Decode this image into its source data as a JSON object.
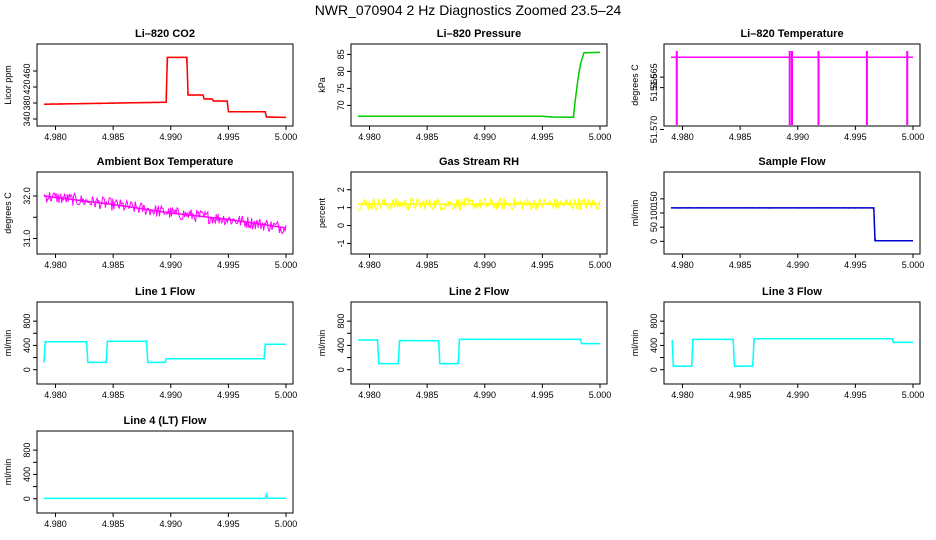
{
  "page": {
    "title": "NWR_070904  2 Hz Diagnostics Zoomed 23.5–24"
  },
  "chart_data": [
    {
      "type": "line",
      "title": "Li–820 CO2",
      "xlabel": "",
      "ylabel": "Licor ppm",
      "color": "#ff0000",
      "xlim": [
        4.979,
        5.0
      ],
      "ylim": [
        340,
        510
      ],
      "x_ticks": [
        4.98,
        4.985,
        4.99,
        4.995,
        5.0
      ],
      "x_tick_labels": [
        "4.980",
        "4.985",
        "4.990",
        "4.995",
        "5.000"
      ],
      "y_ticks": [
        340,
        380,
        420,
        460
      ],
      "y_tick_labels": [
        "340",
        "380",
        "420",
        "460"
      ],
      "series": [
        {
          "noise": 2,
          "points": [
            [
              4.979,
              377
            ],
            [
              4.9896,
              382
            ],
            [
              4.9897,
              494
            ],
            [
              4.9914,
              494
            ],
            [
              4.9915,
              400
            ],
            [
              4.9928,
              400
            ],
            [
              4.9929,
              390
            ],
            [
              4.9936,
              390
            ],
            [
              4.9937,
              385
            ],
            [
              4.9949,
              385
            ],
            [
              4.995,
              358
            ],
            [
              4.9982,
              358
            ],
            [
              4.9983,
              345
            ],
            [
              5.0,
              344
            ]
          ]
        }
      ]
    },
    {
      "type": "line",
      "title": "Li–820 Pressure",
      "xlabel": "",
      "ylabel": "kPa",
      "color": "#00cc00",
      "xlim": [
        4.979,
        5.0
      ],
      "ylim": [
        66,
        86
      ],
      "x_ticks": [
        4.98,
        4.985,
        4.99,
        4.995,
        5.0
      ],
      "x_tick_labels": [
        "4.980",
        "4.985",
        "4.990",
        "4.995",
        "5.000"
      ],
      "y_ticks": [
        70,
        75,
        80,
        85
      ],
      "y_tick_labels": [
        "70",
        "75",
        "80",
        "85"
      ],
      "series": [
        {
          "noise": 0.08,
          "points": [
            [
              4.979,
              66.8
            ],
            [
              4.995,
              66.8
            ],
            [
              4.9958,
              66.6
            ],
            [
              4.9977,
              66.5
            ],
            [
              4.9978,
              70
            ],
            [
              4.9981,
              78
            ],
            [
              4.9983,
              82
            ],
            [
              4.9986,
              85.5
            ],
            [
              5.0,
              85.6
            ]
          ]
        }
      ]
    },
    {
      "type": "line",
      "title": "Li–820 Temperature",
      "xlabel": "",
      "ylabel": "degrees C",
      "color": "#ff00ff",
      "xlim": [
        4.979,
        5.0
      ],
      "ylim": [
        51.569,
        51.5625
      ],
      "x_ticks": [
        4.98,
        4.985,
        4.99,
        4.995,
        5.0
      ],
      "x_tick_labels": [
        "4.980",
        "4.985",
        "4.990",
        "4.995",
        "5.000"
      ],
      "y_ticks": [
        51.57,
        51.566,
        51.565
      ],
      "y_tick_labels": [
        "51.570",
        "51.566",
        "51.565"
      ],
      "series": [
        {
          "noise": 0,
          "points": [
            [
              4.979,
              51.5631
            ],
            [
              5.0,
              51.5631
            ]
          ]
        }
      ],
      "spikes": [
        4.9795,
        4.9893,
        4.9895,
        4.9918,
        4.996,
        4.9995
      ]
    },
    {
      "type": "line",
      "title": "Ambient Box Temperature",
      "xlabel": "",
      "ylabel": "degrees C",
      "color": "#ff00ff",
      "xlim": [
        4.979,
        5.0
      ],
      "ylim": [
        30.8,
        32.4
      ],
      "x_ticks": [
        4.98,
        4.985,
        4.99,
        4.995,
        5.0
      ],
      "x_tick_labels": [
        "4.980",
        "4.985",
        "4.990",
        "4.995",
        "5.000"
      ],
      "y_ticks": [
        31.0,
        31.5,
        32.0
      ],
      "y_tick_labels": [
        "31.0",
        "",
        "32.0"
      ],
      "series": [
        {
          "noise": 0.3,
          "points": [
            [
              4.979,
              32.0
            ],
            [
              4.985,
              31.8
            ],
            [
              4.99,
              31.6
            ],
            [
              4.995,
              31.45
            ],
            [
              5.0,
              31.25
            ]
          ]
        }
      ]
    },
    {
      "type": "line",
      "title": "Gas Stream RH",
      "xlabel": "",
      "ylabel": "percent",
      "color": "#ffff00",
      "xlim": [
        4.979,
        5.0
      ],
      "ylim": [
        -1.2,
        2.6
      ],
      "x_ticks": [
        4.98,
        4.985,
        4.99,
        4.995,
        5.0
      ],
      "x_tick_labels": [
        "4.980",
        "4.985",
        "4.990",
        "4.995",
        "5.000"
      ],
      "y_ticks": [
        -1,
        0,
        1,
        2
      ],
      "y_tick_labels": [
        "-1",
        "0",
        "1",
        "2"
      ],
      "series": [
        {
          "noise": 0.7,
          "points": [
            [
              4.979,
              1.2
            ],
            [
              5.0,
              1.2
            ]
          ]
        }
      ]
    },
    {
      "type": "line",
      "title": "Sample Flow",
      "xlabel": "",
      "ylabel": "ml/min",
      "color": "#0000cc",
      "xlim": [
        4.979,
        5.0
      ],
      "ylim": [
        -20,
        220
      ],
      "x_ticks": [
        4.98,
        4.985,
        4.99,
        4.995,
        5.0
      ],
      "x_tick_labels": [
        "4.980",
        "4.985",
        "4.990",
        "4.995",
        "5.000"
      ],
      "y_ticks": [
        0,
        50,
        100,
        150
      ],
      "y_tick_labels": [
        "0",
        "50",
        "100",
        "150"
      ],
      "series": [
        {
          "noise": 1.5,
          "points": [
            [
              4.979,
              118
            ],
            [
              4.9966,
              118
            ],
            [
              4.9967,
              2
            ],
            [
              5.0,
              2
            ]
          ]
        }
      ]
    },
    {
      "type": "line",
      "title": "Line 1 Flow",
      "xlabel": "",
      "ylabel": "ml/min",
      "color": "#00ffff",
      "xlim": [
        4.979,
        5.0
      ],
      "ylim": [
        -120,
        1000
      ],
      "x_ticks": [
        4.98,
        4.985,
        4.99,
        4.995,
        5.0
      ],
      "x_tick_labels": [
        "4.980",
        "4.985",
        "4.990",
        "4.995",
        "5.000"
      ],
      "y_ticks": [
        0,
        200,
        400,
        600,
        800
      ],
      "y_tick_labels": [
        "0",
        "",
        "400",
        "",
        "800"
      ],
      "series": [
        {
          "noise": 8,
          "points": [
            [
              4.979,
              120
            ],
            [
              4.9791,
              460
            ],
            [
              4.9827,
              460
            ],
            [
              4.9828,
              120
            ],
            [
              4.9844,
              120
            ],
            [
              4.9845,
              470
            ],
            [
              4.9879,
              470
            ],
            [
              4.988,
              120
            ],
            [
              4.9895,
              120
            ],
            [
              4.9896,
              180
            ],
            [
              4.9981,
              180
            ],
            [
              4.9982,
              420
            ],
            [
              5.0,
              420
            ]
          ]
        }
      ]
    },
    {
      "type": "line",
      "title": "Line 2 Flow",
      "xlabel": "",
      "ylabel": "ml/min",
      "color": "#00ffff",
      "xlim": [
        4.979,
        5.0
      ],
      "ylim": [
        -120,
        1000
      ],
      "x_ticks": [
        4.98,
        4.985,
        4.99,
        4.995,
        5.0
      ],
      "x_tick_labels": [
        "4.980",
        "4.985",
        "4.990",
        "4.995",
        "5.000"
      ],
      "y_ticks": [
        0,
        200,
        400,
        600,
        800
      ],
      "y_tick_labels": [
        "0",
        "",
        "400",
        "",
        "800"
      ],
      "series": [
        {
          "noise": 8,
          "points": [
            [
              4.979,
              490
            ],
            [
              4.9807,
              490
            ],
            [
              4.9808,
              100
            ],
            [
              4.9825,
              100
            ],
            [
              4.9826,
              480
            ],
            [
              4.986,
              480
            ],
            [
              4.9861,
              100
            ],
            [
              4.9877,
              100
            ],
            [
              4.9878,
              500
            ],
            [
              4.9983,
              500
            ],
            [
              4.9984,
              430
            ],
            [
              5.0,
              430
            ]
          ]
        }
      ]
    },
    {
      "type": "line",
      "title": "Line 3 Flow",
      "xlabel": "",
      "ylabel": "ml/min",
      "color": "#00ffff",
      "xlim": [
        4.979,
        5.0
      ],
      "ylim": [
        -120,
        1000
      ],
      "x_ticks": [
        4.98,
        4.985,
        4.99,
        4.995,
        5.0
      ],
      "x_tick_labels": [
        "4.980",
        "4.985",
        "4.990",
        "4.995",
        "5.000"
      ],
      "y_ticks": [
        0,
        200,
        400,
        600,
        800
      ],
      "y_tick_labels": [
        "0",
        "",
        "400",
        "",
        "800"
      ],
      "series": [
        {
          "noise": 8,
          "points": [
            [
              4.9791,
              490
            ],
            [
              4.9792,
              60
            ],
            [
              4.9808,
              60
            ],
            [
              4.9809,
              500
            ],
            [
              4.9844,
              500
            ],
            [
              4.9845,
              60
            ],
            [
              4.9861,
              60
            ],
            [
              4.9862,
              510
            ],
            [
              4.9982,
              510
            ],
            [
              4.9983,
              450
            ],
            [
              5.0,
              450
            ]
          ]
        }
      ]
    },
    {
      "type": "line",
      "title": "Line 4 (LT) Flow",
      "xlabel": "",
      "ylabel": "ml/min",
      "color": "#00ffff",
      "xlim": [
        4.979,
        5.0
      ],
      "ylim": [
        -120,
        1000
      ],
      "x_ticks": [
        4.98,
        4.985,
        4.99,
        4.995,
        5.0
      ],
      "x_tick_labels": [
        "4.980",
        "4.985",
        "4.990",
        "4.995",
        "5.000"
      ],
      "y_ticks": [
        0,
        200,
        400,
        600,
        800
      ],
      "y_tick_labels": [
        "0",
        "",
        "400",
        "",
        "800"
      ],
      "series": [
        {
          "noise": 2,
          "points": [
            [
              4.979,
              5
            ],
            [
              4.9982,
              5
            ],
            [
              4.9983,
              70
            ],
            [
              4.9984,
              10
            ],
            [
              5.0,
              8
            ]
          ]
        }
      ]
    }
  ]
}
